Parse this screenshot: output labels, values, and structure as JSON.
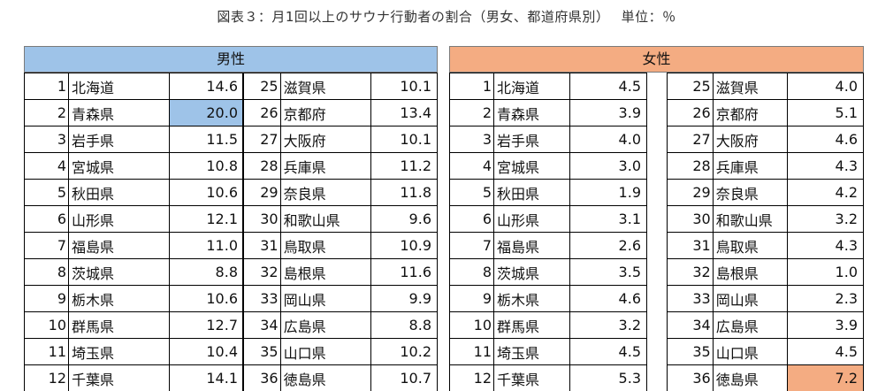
{
  "title": "図表３：月1回以上のサウナ行動者の割合（男女、都道府県別）　 単位：％",
  "male": {
    "header": "男性",
    "left": [
      {
        "no": "1",
        "name": "北海道",
        "value": "14.6"
      },
      {
        "no": "2",
        "name": "青森県",
        "value": "20.0",
        "highlight": true
      },
      {
        "no": "3",
        "name": "岩手県",
        "value": "11.5"
      },
      {
        "no": "4",
        "name": "宮城県",
        "value": "10.8"
      },
      {
        "no": "5",
        "name": "秋田県",
        "value": "10.6"
      },
      {
        "no": "6",
        "name": "山形県",
        "value": "12.1"
      },
      {
        "no": "7",
        "name": "福島県",
        "value": "11.0"
      },
      {
        "no": "8",
        "name": "茨城県",
        "value": "8.8"
      },
      {
        "no": "9",
        "name": "栃木県",
        "value": "10.6"
      },
      {
        "no": "10",
        "name": "群馬県",
        "value": "12.7"
      },
      {
        "no": "11",
        "name": "埼玉県",
        "value": "10.4"
      },
      {
        "no": "12",
        "name": "千葉県",
        "value": "14.1"
      }
    ],
    "right": [
      {
        "no": "25",
        "name": "滋賀県",
        "value": "10.1"
      },
      {
        "no": "26",
        "name": "京都府",
        "value": "13.4"
      },
      {
        "no": "27",
        "name": "大阪府",
        "value": "10.1"
      },
      {
        "no": "28",
        "name": "兵庫県",
        "value": "11.2"
      },
      {
        "no": "29",
        "name": "奈良県",
        "value": "11.8"
      },
      {
        "no": "30",
        "name": "和歌山県",
        "value": "9.6"
      },
      {
        "no": "31",
        "name": "鳥取県",
        "value": "10.9"
      },
      {
        "no": "32",
        "name": "島根県",
        "value": "11.6"
      },
      {
        "no": "33",
        "name": "岡山県",
        "value": "9.9"
      },
      {
        "no": "34",
        "name": "広島県",
        "value": "8.8"
      },
      {
        "no": "35",
        "name": "山口県",
        "value": "10.2"
      },
      {
        "no": "36",
        "name": "徳島県",
        "value": "10.7"
      }
    ]
  },
  "female": {
    "header": "女性",
    "left": [
      {
        "no": "1",
        "name": "北海道",
        "value": "4.5"
      },
      {
        "no": "2",
        "name": "青森県",
        "value": "3.9"
      },
      {
        "no": "3",
        "name": "岩手県",
        "value": "4.0"
      },
      {
        "no": "4",
        "name": "宮城県",
        "value": "3.0"
      },
      {
        "no": "5",
        "name": "秋田県",
        "value": "1.9"
      },
      {
        "no": "6",
        "name": "山形県",
        "value": "3.1"
      },
      {
        "no": "7",
        "name": "福島県",
        "value": "2.6"
      },
      {
        "no": "8",
        "name": "茨城県",
        "value": "3.5"
      },
      {
        "no": "9",
        "name": "栃木県",
        "value": "4.6"
      },
      {
        "no": "10",
        "name": "群馬県",
        "value": "3.2"
      },
      {
        "no": "11",
        "name": "埼玉県",
        "value": "4.5"
      },
      {
        "no": "12",
        "name": "千葉県",
        "value": "5.3"
      }
    ],
    "right": [
      {
        "no": "25",
        "name": "滋賀県",
        "value": "4.0"
      },
      {
        "no": "26",
        "name": "京都府",
        "value": "5.1"
      },
      {
        "no": "27",
        "name": "大阪府",
        "value": "4.6"
      },
      {
        "no": "28",
        "name": "兵庫県",
        "value": "4.3"
      },
      {
        "no": "29",
        "name": "奈良県",
        "value": "4.2"
      },
      {
        "no": "30",
        "name": "和歌山県",
        "value": "3.2"
      },
      {
        "no": "31",
        "name": "鳥取県",
        "value": "4.3"
      },
      {
        "no": "32",
        "name": "島根県",
        "value": "1.0"
      },
      {
        "no": "33",
        "name": "岡山県",
        "value": "2.3"
      },
      {
        "no": "34",
        "name": "広島県",
        "value": "3.9"
      },
      {
        "no": "35",
        "name": "山口県",
        "value": "4.5"
      },
      {
        "no": "36",
        "name": "徳島県",
        "value": "7.2",
        "highlight": true
      }
    ]
  },
  "colors": {
    "male_accent": "#9ec3e8",
    "female_accent": "#f4ac82"
  }
}
